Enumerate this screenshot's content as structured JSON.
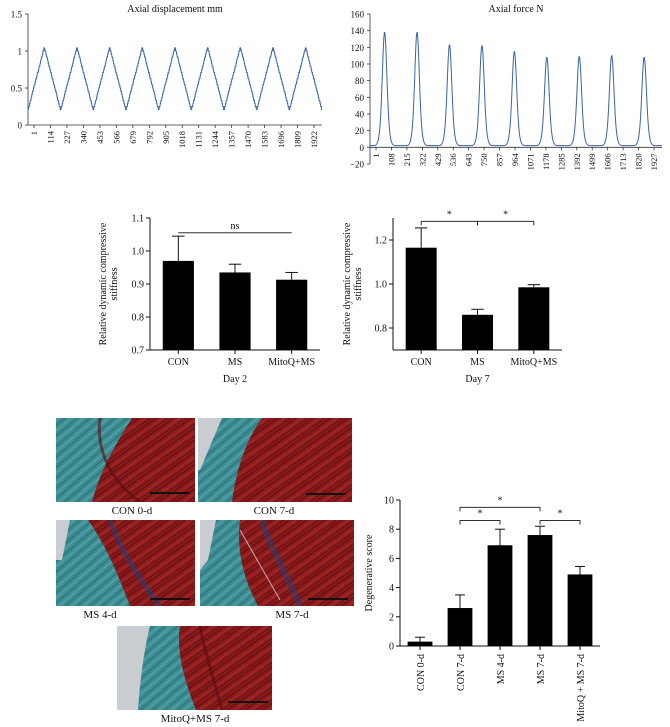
{
  "chart_data": [
    {
      "id": "axial-displacement",
      "type": "line",
      "title": "Axial displacement mm",
      "xlabel": "",
      "ylabel": "",
      "ylim": [
        0,
        1.5
      ],
      "yticks": [
        0,
        0.5,
        1,
        1.5
      ],
      "ytick_labels": [
        "0",
        "0.5",
        "1",
        "1.5"
      ],
      "x_tick_labels": [
        "1",
        "114",
        "227",
        "340",
        "453",
        "566",
        "679",
        "792",
        "905",
        "1018",
        "1131",
        "1244",
        "1357",
        "1470",
        "1583",
        "1696",
        "1809",
        "1922"
      ],
      "x_range": [
        1,
        2000
      ],
      "series_color": "#3a63a8",
      "cycles": 9,
      "wave": {
        "min": 0.2,
        "max": 1.05,
        "shape": "triangle"
      }
    },
    {
      "id": "axial-force",
      "type": "line",
      "title": "Axial force N",
      "xlabel": "",
      "ylabel": "",
      "ylim": [
        -20,
        160
      ],
      "yticks": [
        -20,
        0,
        20,
        40,
        60,
        80,
        100,
        120,
        140,
        160
      ],
      "ytick_labels": [
        "−20",
        "0",
        "20",
        "40",
        "60",
        "80",
        "100",
        "120",
        "140",
        "160"
      ],
      "x_tick_labels": [
        "1",
        "108",
        "215",
        "322",
        "429",
        "536",
        "643",
        "750",
        "857",
        "964",
        "1071",
        "1178",
        "1285",
        "1392",
        "1499",
        "1606",
        "1713",
        "1820",
        "1927"
      ],
      "x_range": [
        1,
        2000
      ],
      "series_color": "#3a63a8",
      "peaks": [
        138,
        138,
        123,
        122,
        115,
        108,
        109,
        110,
        108
      ],
      "baseline": 2
    },
    {
      "id": "stiffness-day2",
      "type": "bar",
      "title": "",
      "xlabel": "Day 2",
      "ylabel": "Relative dynamic compressive stiffness",
      "ylabel_lines": [
        "Relative dynamic compressive",
        "stiffness"
      ],
      "categories": [
        "CON",
        "MS",
        "MitoQ+MS"
      ],
      "values": [
        0.97,
        0.935,
        0.913
      ],
      "errors": [
        0.075,
        0.025,
        0.022
      ],
      "ylim": [
        0.7,
        1.1
      ],
      "yticks": [
        0.7,
        0.8,
        0.9,
        1.0,
        1.1
      ],
      "ytick_labels": [
        "0.7",
        "0.8",
        "0.9",
        "1.0",
        "1.1"
      ],
      "significance": [
        {
          "from": 0,
          "to": 2,
          "label": "ns",
          "y": 1.055
        }
      ],
      "bar_color": "#000000"
    },
    {
      "id": "stiffness-day7",
      "type": "bar",
      "title": "",
      "xlabel": "Day 7",
      "ylabel": "Relative dynamic compressive stiffness",
      "ylabel_lines": [
        "Relative dynamic compressive",
        "stiffness"
      ],
      "categories": [
        "CON",
        "MS",
        "MitoQ+MS"
      ],
      "values": [
        1.165,
        0.86,
        0.985
      ],
      "errors": [
        0.09,
        0.025,
        0.012
      ],
      "ylim": [
        0.7,
        1.3
      ],
      "yticks": [
        0.8,
        1.0,
        1.2
      ],
      "ytick_labels": [
        "0.8",
        "1.0",
        "1.2"
      ],
      "significance": [
        {
          "from": 0,
          "to": 1,
          "label": "*",
          "y": 1.285
        },
        {
          "from": 1,
          "to": 2,
          "label": "*",
          "y": 1.285
        }
      ],
      "bar_color": "#000000"
    },
    {
      "id": "degenerative-score",
      "type": "bar",
      "title": "",
      "xlabel": "",
      "ylabel": "Degenerative score",
      "categories": [
        "CON 0-d",
        "CON 7-d",
        "MS 4-d",
        "MS 7-d",
        "MitoQ + MS 7-d"
      ],
      "values": [
        0.3,
        2.6,
        6.9,
        7.6,
        4.9
      ],
      "errors": [
        0.3,
        0.9,
        1.1,
        0.6,
        0.55
      ],
      "ylim": [
        0,
        10
      ],
      "yticks": [
        0,
        2,
        4,
        6,
        8,
        10
      ],
      "ytick_labels": [
        "0",
        "2",
        "4",
        "6",
        "8",
        "10"
      ],
      "significance": [
        {
          "from": 1,
          "to": 2,
          "label": "*",
          "y": 8.6
        },
        {
          "from": 1,
          "to": 3,
          "label": "*",
          "y": 9.5
        },
        {
          "from": 3,
          "to": 4,
          "label": "*",
          "y": 8.6
        }
      ],
      "bar_color": "#000000"
    }
  ],
  "histology": [
    {
      "label": "CON 0-d"
    },
    {
      "label": "CON 7-d"
    },
    {
      "label": "MS 4-d"
    },
    {
      "label": "MS 7-d"
    },
    {
      "label": "MitoQ+MS 7-d"
    }
  ],
  "colors": {
    "stain_collagen": "#8e1c1c",
    "stain_collagen_dark": "#5a0c10",
    "stain_teal": "#3d8f95",
    "background_gray": "#c9ccd0"
  }
}
